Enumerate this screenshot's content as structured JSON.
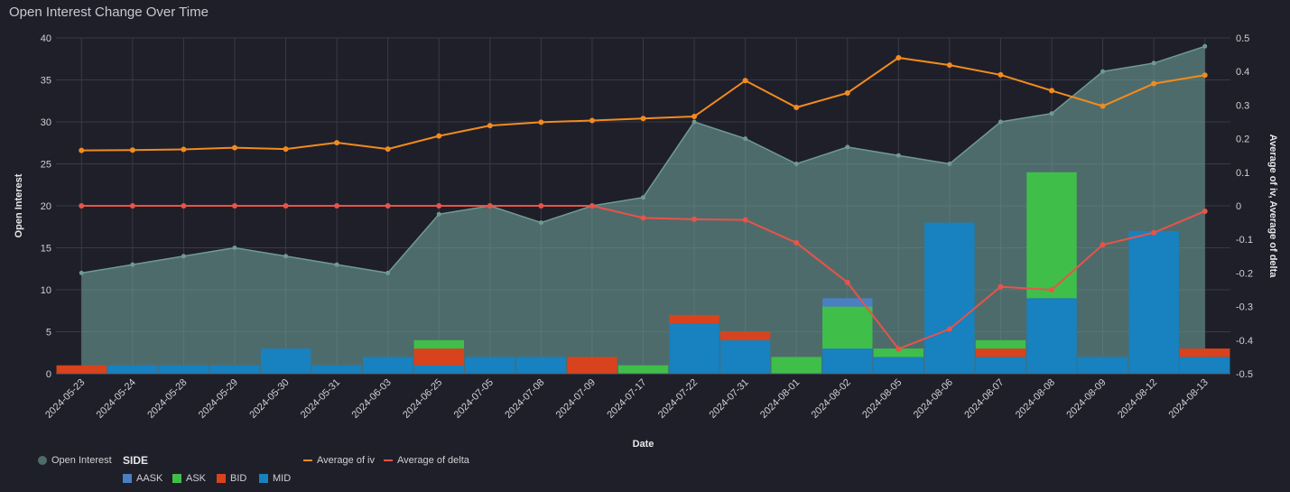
{
  "title": "Open Interest Change Over Time",
  "colors": {
    "background": "#1f1f29",
    "grid": "#3a3a48",
    "area_fill": "#6e9f98",
    "area_line": "#6f9a94",
    "aask": "#4a7fc1",
    "ask": "#3fbf4a",
    "bid": "#d8431d",
    "mid": "#1881bf",
    "iv": "#f28b1e",
    "delta": "#e8534a"
  },
  "legend": {
    "open_interest": "Open Interest",
    "side_title": "SIDE",
    "aask": "AASK",
    "ask": "ASK",
    "bid": "BID",
    "mid": "MID",
    "iv": "Average of iv",
    "delta": "Average of delta"
  },
  "chart_data": {
    "type": "bar",
    "title": "Open Interest Change Over Time",
    "xlabel": "Date",
    "ylabel": "Open Interest",
    "y2label": "Average of iv, Average of delta",
    "ylim": [
      0,
      40
    ],
    "yticks": [
      0,
      5,
      10,
      15,
      20,
      25,
      30,
      35,
      40
    ],
    "y2lim": [
      -0.5,
      0.5
    ],
    "y2ticks": [
      "-0.5",
      "-0.4",
      "-0.3",
      "-0.2",
      "-0.1",
      "0",
      "0.1",
      "0.2",
      "0.3",
      "0.4",
      "0.5"
    ],
    "grid": true,
    "legend_position": "bottom",
    "categories": [
      "2024-05-23",
      "2024-05-24",
      "2024-05-28",
      "2024-05-29",
      "2024-05-30",
      "2024-05-31",
      "2024-06-03",
      "2024-06-25",
      "2024-07-05",
      "2024-07-08",
      "2024-07-09",
      "2024-07-17",
      "2024-07-22",
      "2024-07-31",
      "2024-08-01",
      "2024-08-02",
      "2024-08-05",
      "2024-08-06",
      "2024-08-07",
      "2024-08-08",
      "2024-08-09",
      "2024-08-12",
      "2024-08-13"
    ],
    "open_interest": [
      12,
      13,
      14,
      15,
      14,
      13,
      12,
      19,
      20,
      18,
      20,
      21,
      30,
      28,
      25,
      27,
      26,
      25,
      30,
      31,
      36,
      37,
      39
    ],
    "series": [
      {
        "name": "MID",
        "values": [
          0,
          1,
          1,
          1,
          3,
          1,
          2,
          1,
          2,
          2,
          0,
          0,
          6,
          4,
          0,
          3,
          2,
          18,
          2,
          9,
          2,
          17,
          2
        ]
      },
      {
        "name": "BID",
        "values": [
          1,
          0,
          0,
          0,
          0,
          0,
          0,
          2,
          0,
          0,
          2,
          0,
          1,
          1,
          0,
          0,
          0,
          0,
          1,
          0,
          0,
          0,
          1
        ]
      },
      {
        "name": "ASK",
        "values": [
          0,
          0,
          0,
          0,
          0,
          0,
          0,
          1,
          0,
          0,
          0,
          1,
          0,
          0,
          2,
          5,
          1,
          0,
          1,
          15,
          0,
          0,
          0
        ]
      },
      {
        "name": "AASK",
        "values": [
          0,
          0,
          0,
          0,
          0,
          0,
          0,
          0,
          0,
          0,
          0,
          0,
          0,
          0,
          0,
          1,
          0,
          0,
          0,
          0,
          0,
          0,
          0
        ]
      }
    ],
    "iv": [
      0.165,
      0.166,
      0.168,
      0.173,
      0.169,
      0.188,
      0.169,
      0.208,
      0.239,
      0.249,
      0.254,
      0.26,
      0.266,
      0.373,
      0.293,
      0.336,
      0.441,
      0.419,
      0.39,
      0.343,
      0.297,
      0.364,
      0.389
    ],
    "delta": [
      0,
      0,
      0,
      0,
      0,
      0,
      0,
      0,
      0,
      0,
      0,
      -0.036,
      -0.04,
      -0.042,
      -0.11,
      -0.228,
      -0.426,
      -0.367,
      -0.241,
      -0.25,
      -0.116,
      -0.08,
      -0.016
    ]
  }
}
